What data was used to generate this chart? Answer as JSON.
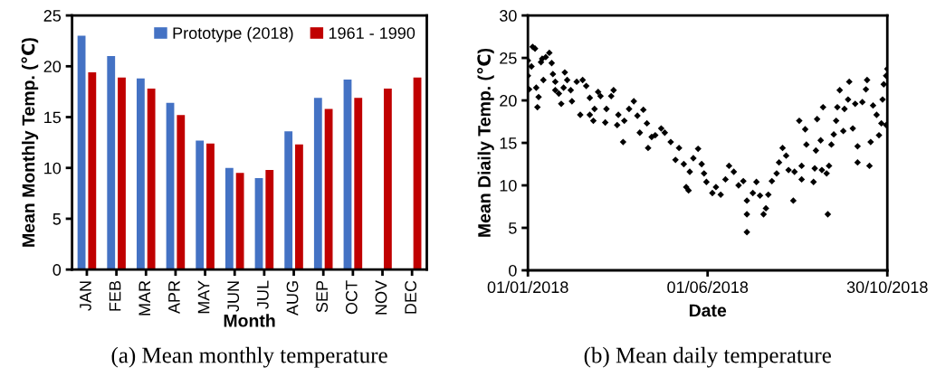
{
  "chart_data": [
    {
      "type": "bar",
      "title": "(a) Mean monthly temperature",
      "xlabel": "Month",
      "ylabel": "Mean Monthly Temp. (℃)",
      "categories": [
        "JAN",
        "FEB",
        "MAR",
        "APR",
        "MAY",
        "JUN",
        "JUL",
        "AUG",
        "SEP",
        "OCT",
        "NOV",
        "DEC"
      ],
      "series": [
        {
          "name": "Prototype (2018)",
          "color": "#4472c4",
          "values": [
            23.0,
            21.0,
            18.8,
            16.4,
            12.7,
            10.0,
            9.0,
            13.6,
            16.9,
            18.7,
            null,
            null
          ]
        },
        {
          "name": "1961 - 1990",
          "color": "#c00000",
          "values": [
            19.4,
            18.9,
            17.8,
            15.2,
            12.4,
            9.5,
            9.8,
            12.3,
            15.8,
            16.9,
            17.8,
            18.9
          ]
        }
      ],
      "ylim": [
        0,
        25
      ],
      "yticks": [
        0,
        5,
        10,
        15,
        20,
        25
      ],
      "grid": false,
      "legend": "top right"
    },
    {
      "type": "scatter",
      "title": "(b) Mean daily temperature",
      "xlabel": "Date",
      "ylabel": "Mean Diaily Temp. (℃)",
      "marker": "diamond",
      "grid": false,
      "xlim": [
        "2018-01-01",
        "2018-10-30"
      ],
      "xticks": [
        {
          "value": "2018-01-01",
          "label": "01/01/2018"
        },
        {
          "value": "2018-06-01",
          "label": "01/06/2018"
        },
        {
          "value": "2018-10-30",
          "label": "30/10/2018"
        }
      ],
      "ylim": [
        0,
        30
      ],
      "yticks": [
        0,
        5,
        10,
        15,
        20,
        25,
        30
      ],
      "series": [
        {
          "color": "#000000",
          "x": [
            "2018-01-01",
            "2018-01-01",
            "2018-01-02",
            "2018-01-04",
            "2018-01-05",
            "2018-01-07",
            "2018-01-08",
            "2018-01-09",
            "2018-01-10",
            "2018-01-12",
            "2018-01-13",
            "2018-01-14",
            "2018-01-16",
            "2018-01-19",
            "2018-01-21",
            "2018-01-22",
            "2018-01-24",
            "2018-01-24",
            "2018-01-27",
            "2018-01-29",
            "2018-01-31",
            "2018-02-01",
            "2018-02-03",
            "2018-02-06",
            "2018-02-07",
            "2018-02-11",
            "2018-02-14",
            "2018-02-16",
            "2018-02-19",
            "2018-02-22",
            "2018-02-22",
            "2018-02-25",
            "2018-02-26",
            "2018-03-01",
            "2018-03-03",
            "2018-03-07",
            "2018-03-08",
            "2018-03-12",
            "2018-03-14",
            "2018-03-17",
            "2018-03-18",
            "2018-03-22",
            "2018-03-23",
            "2018-03-27",
            "2018-03-31",
            "2018-04-03",
            "2018-04-05",
            "2018-04-08",
            "2018-04-11",
            "2018-04-12",
            "2018-04-15",
            "2018-04-18",
            "2018-04-23",
            "2018-04-26",
            "2018-05-01",
            "2018-05-05",
            "2018-05-08",
            "2018-05-12",
            "2018-05-14",
            "2018-05-16",
            "2018-05-17",
            "2018-05-20",
            "2018-05-24",
            "2018-05-27",
            "2018-05-29",
            "2018-05-31",
            "2018-06-05",
            "2018-06-08",
            "2018-06-12",
            "2018-06-16",
            "2018-06-19",
            "2018-06-23",
            "2018-06-27",
            "2018-07-01",
            "2018-07-04",
            "2018-07-04",
            "2018-07-04",
            "2018-07-09",
            "2018-07-12",
            "2018-07-15",
            "2018-07-18",
            "2018-07-20",
            "2018-07-22",
            "2018-07-25",
            "2018-07-29",
            "2018-07-31",
            "2018-08-03",
            "2018-08-06",
            "2018-08-08",
            "2018-08-12",
            "2018-08-13",
            "2018-08-17",
            "2018-08-19",
            "2018-08-19",
            "2018-08-22",
            "2018-08-23",
            "2018-08-29",
            "2018-08-30",
            "2018-08-31",
            "2018-09-01",
            "2018-09-04",
            "2018-09-05",
            "2018-09-06",
            "2018-09-09",
            "2018-09-10",
            "2018-09-11",
            "2018-09-13",
            "2018-09-15",
            "2018-09-17",
            "2018-09-18",
            "2018-09-20",
            "2018-09-23",
            "2018-09-24",
            "2018-09-27",
            "2018-09-28",
            "2018-10-01",
            "2018-10-03",
            "2018-10-05",
            "2018-10-05",
            "2018-10-09",
            "2018-10-12",
            "2018-10-13",
            "2018-10-15",
            "2018-10-16",
            "2018-10-18",
            "2018-10-21",
            "2018-10-23",
            "2018-10-25",
            "2018-10-26",
            "2018-10-27",
            "2018-10-29",
            "2018-10-29",
            "2018-10-30"
          ],
          "values": [
            24.7,
            22.9,
            21.3,
            24.0,
            26.3,
            26.1,
            21.5,
            19.2,
            20.4,
            24.5,
            24.9,
            22.4,
            25.1,
            25.6,
            24.4,
            23.1,
            22.2,
            21.2,
            20.8,
            19.6,
            21.5,
            23.3,
            22.4,
            21.2,
            19.9,
            22.2,
            18.3,
            22.4,
            21.7,
            20.3,
            18.3,
            17.6,
            19.0,
            21.0,
            20.5,
            17.4,
            19.0,
            20.5,
            21.2,
            17.1,
            18.3,
            15.1,
            17.6,
            19.0,
            19.9,
            18.2,
            16.2,
            18.9,
            17.3,
            14.4,
            15.7,
            15.9,
            16.7,
            16.2,
            15.1,
            13.0,
            14.4,
            12.5,
            9.8,
            9.4,
            11.6,
            13.2,
            14.3,
            12.5,
            11.4,
            10.4,
            9.1,
            9.8,
            8.9,
            10.7,
            12.3,
            11.6,
            10.0,
            10.5,
            8.2,
            4.5,
            6.6,
            9.1,
            10.4,
            8.8,
            6.6,
            7.3,
            8.9,
            10.5,
            11.4,
            12.7,
            14.4,
            13.5,
            11.8,
            8.2,
            11.6,
            17.6,
            10.7,
            12.3,
            16.6,
            14.8,
            10.4,
            12.0,
            14.1,
            17.8,
            15.3,
            11.8,
            19.2,
            11.4,
            6.6,
            12.3,
            14.8,
            16.0,
            17.6,
            19.2,
            21.2,
            16.4,
            19.0,
            20.1,
            22.2,
            16.7,
            19.6,
            12.7,
            14.6,
            19.8,
            21.3,
            22.4,
            12.3,
            15.1,
            19.4,
            18.3,
            15.9,
            17.3,
            20.1,
            21.9,
            22.9,
            17.1,
            23.7
          ]
        }
      ]
    }
  ]
}
